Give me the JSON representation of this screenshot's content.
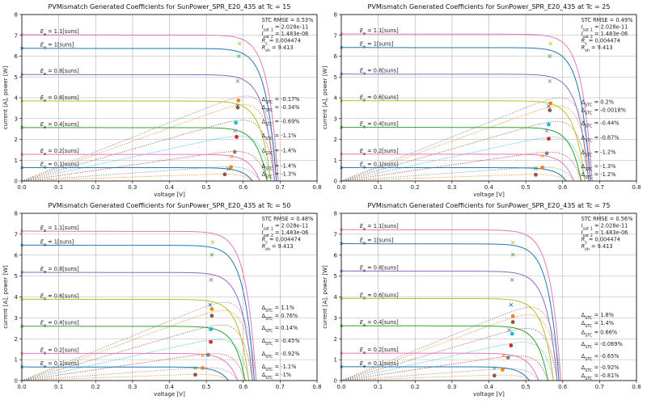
{
  "colors": {
    "iv_lines": [
      "#e377c2",
      "#1f77b4",
      "#9467bd",
      "#bcbd22",
      "#2ca02c",
      "#e377c2",
      "#1f77b4"
    ],
    "power_lines": [
      "#7f7f7f",
      "#ff7f0e",
      "#8c564b",
      "#17becf",
      "#d62728",
      "#7f7f7f",
      "#ff7f0e"
    ],
    "pmp_dots": [
      "#ff7f0e",
      "#8c564b",
      "#17becf",
      "#d62728",
      "#7f7f7f",
      "#ff7f0e",
      "#8c564b"
    ],
    "imp_markers": [
      "#bcbd22",
      "#2ca02c",
      "#9467bd",
      "#1f77b4",
      "#9467bd",
      "#ff7f0e",
      "#2ca02c"
    ],
    "grid": "#b0b0b0"
  },
  "chart_data": [
    {
      "type": "line",
      "title": "PVMismatch Generated Coefficients for SunPower_SPR_E20_435 at Tc = 15",
      "xlabel": "voltage [V]",
      "ylabel": "current [A], power [W]",
      "xlim": [
        0,
        0.8
      ],
      "ylim": [
        0,
        8
      ],
      "grid": true,
      "xticks": [
        "0.0",
        "0.1",
        "0.2",
        "0.3",
        "0.4",
        "0.5",
        "0.6",
        "0.7",
        "0.8"
      ],
      "yticks": [
        "0",
        "1",
        "2",
        "3",
        "4",
        "5",
        "6",
        "7",
        "8"
      ],
      "irradiance_labels": [
        "1.1[suns]",
        "1[suns]",
        "0.8[suns]",
        "0.6[suns]",
        "0.4[suns]",
        "0.2[suns]",
        "0.1[suns]"
      ],
      "isc": [
        7.03,
        6.38,
        5.12,
        3.85,
        2.57,
        1.28,
        0.64
      ],
      "voc": [
        0.695,
        0.69,
        0.685,
        0.675,
        0.665,
        0.645,
        0.625
      ],
      "imp_points": [
        [
          0.59,
          6.6
        ],
        [
          0.588,
          6.0
        ],
        [
          0.585,
          4.8
        ],
        [
          0.585,
          3.62
        ],
        [
          0.578,
          2.42
        ],
        [
          0.568,
          1.18
        ],
        [
          0.56,
          0.58
        ]
      ],
      "pmp_points": [
        [
          0.587,
          3.87
        ],
        [
          0.585,
          3.53
        ],
        [
          0.58,
          2.8
        ],
        [
          0.582,
          2.12
        ],
        [
          0.577,
          1.4
        ],
        [
          0.567,
          0.67
        ],
        [
          0.55,
          0.32
        ]
      ],
      "delta_stc": [
        "-0.17%",
        "-0.34%",
        "-0.69%",
        "-1.1%",
        "-1.4%",
        "-1.4%",
        "-1.3%"
      ],
      "stats": {
        "rmse": "STC RMSE = 0.53%",
        "isat1": "2.028e-11",
        "isat2": "1.483e-06",
        "rs": "0.004474",
        "rsh": "9.413"
      }
    },
    {
      "type": "line",
      "title": "PVMismatch Generated Coefficients for SunPower_SPR_E20_435 at Tc = 25",
      "xlabel": "voltage [V]",
      "ylabel": "current [A], power [W]",
      "xlim": [
        0,
        0.8
      ],
      "ylim": [
        0,
        8
      ],
      "grid": true,
      "xticks": [
        "0.0",
        "0.1",
        "0.2",
        "0.3",
        "0.4",
        "0.5",
        "0.6",
        "0.7",
        "0.8"
      ],
      "yticks": [
        "0",
        "1",
        "2",
        "3",
        "4",
        "5",
        "6",
        "7",
        "8"
      ],
      "irradiance_labels": [
        "1.1[suns]",
        "1[suns]",
        "0.8[suns]",
        "0.6[suns]",
        "0.4[suns]",
        "0.2[suns]",
        "0.1[suns]"
      ],
      "isc": [
        7.07,
        6.42,
        5.14,
        3.86,
        2.58,
        1.29,
        0.64
      ],
      "voc": [
        0.68,
        0.675,
        0.67,
        0.66,
        0.65,
        0.63,
        0.61
      ],
      "imp_points": [
        [
          0.567,
          6.6
        ],
        [
          0.565,
          6.0
        ],
        [
          0.565,
          4.8
        ],
        [
          0.562,
          3.6
        ],
        [
          0.557,
          2.42
        ],
        [
          0.545,
          1.2
        ],
        [
          0.527,
          0.6
        ]
      ],
      "pmp_points": [
        [
          0.567,
          3.73
        ],
        [
          0.565,
          3.4
        ],
        [
          0.562,
          2.72
        ],
        [
          0.562,
          2.03
        ],
        [
          0.557,
          1.33
        ],
        [
          0.545,
          0.65
        ],
        [
          0.527,
          0.3
        ]
      ],
      "delta_stc": [
        "0.2%",
        "-0.0018%",
        "-0.44%",
        "-0.87%",
        "-1.2%",
        "-1.3%",
        "-1.2%"
      ],
      "stats": {
        "rmse": "STC RMSE = 0.49%",
        "isat1": "2.028e-11",
        "isat2": "1.483e-06",
        "rs": "0.004474",
        "rsh": "9.413"
      }
    },
    {
      "type": "line",
      "title": "PVMismatch Generated Coefficients for SunPower_SPR_E20_435 at Tc = 50",
      "xlabel": "voltage [V]",
      "ylabel": "current [A], power [W]",
      "xlim": [
        0,
        0.8
      ],
      "ylim": [
        0,
        8
      ],
      "grid": true,
      "xticks": [
        "0.0",
        "0.1",
        "0.2",
        "0.3",
        "0.4",
        "0.5",
        "0.6",
        "0.7",
        "0.8"
      ],
      "yticks": [
        "0",
        "1",
        "2",
        "3",
        "4",
        "5",
        "6",
        "7",
        "8"
      ],
      "irradiance_labels": [
        "1.1[suns]",
        "1[suns]",
        "0.8[suns]",
        "0.6[suns]",
        "0.4[suns]",
        "0.2[suns]",
        "0.1[suns]"
      ],
      "isc": [
        7.15,
        6.48,
        5.18,
        3.89,
        2.6,
        1.3,
        0.65
      ],
      "voc": [
        0.635,
        0.63,
        0.625,
        0.615,
        0.605,
        0.585,
        0.56
      ],
      "imp_points": [
        [
          0.517,
          6.62
        ],
        [
          0.515,
          6.02
        ],
        [
          0.513,
          4.82
        ],
        [
          0.51,
          3.62
        ],
        [
          0.51,
          2.45
        ],
        [
          0.49,
          1.2
        ],
        [
          0.47,
          0.6
        ]
      ],
      "pmp_points": [
        [
          0.515,
          3.42
        ],
        [
          0.515,
          3.1
        ],
        [
          0.513,
          2.46
        ],
        [
          0.512,
          1.85
        ],
        [
          0.505,
          1.23
        ],
        [
          0.49,
          0.6
        ],
        [
          0.47,
          0.28
        ]
      ],
      "delta_stc": [
        "1.1%",
        "0.76%",
        "0.14%",
        "-0.45%",
        "-0.92%",
        "-1.1%",
        "-1%"
      ],
      "stats": {
        "rmse": "STC RMSE = 0.48%",
        "isat1": "2.028e-11",
        "isat2": "1.483e-06",
        "rs": "0.004474",
        "rsh": "9.413"
      }
    },
    {
      "type": "line",
      "title": "PVMismatch Generated Coefficients for SunPower_SPR_E20_435 at Tc = 75",
      "xlabel": "voltage [V]",
      "ylabel": "current [A], power [W]",
      "xlim": [
        0,
        0.8
      ],
      "ylim": [
        0,
        8
      ],
      "grid": true,
      "xticks": [
        "0.0",
        "0.1",
        "0.2",
        "0.3",
        "0.4",
        "0.5",
        "0.6",
        "0.7",
        "0.8"
      ],
      "yticks": [
        "0",
        "1",
        "2",
        "3",
        "4",
        "5",
        "6",
        "7",
        "8"
      ],
      "irradiance_labels": [
        "1.1[suns]",
        "1[suns]",
        "0.8[suns]",
        "0.6[suns]",
        "0.4[suns]",
        "0.2[suns]",
        "0.1[suns]"
      ],
      "isc": [
        7.22,
        6.55,
        5.24,
        3.93,
        2.62,
        1.31,
        0.66
      ],
      "voc": [
        0.595,
        0.59,
        0.585,
        0.575,
        0.56,
        0.535,
        0.51
      ],
      "imp_points": [
        [
          0.465,
          6.6
        ],
        [
          0.465,
          6.02
        ],
        [
          0.463,
          4.82
        ],
        [
          0.46,
          3.62
        ],
        [
          0.455,
          2.42
        ],
        [
          0.44,
          1.2
        ],
        [
          0.415,
          0.6
        ]
      ],
      "pmp_points": [
        [
          0.465,
          3.08
        ],
        [
          0.465,
          2.8
        ],
        [
          0.463,
          2.24
        ],
        [
          0.46,
          1.68
        ],
        [
          0.452,
          1.1
        ],
        [
          0.437,
          0.52
        ],
        [
          0.415,
          0.24
        ]
      ],
      "delta_stc": [
        "1.8%",
        "1.4%",
        "0.66%",
        "-0.069%",
        "-0.65%",
        "-0.92%",
        "-0.81%"
      ],
      "stats": {
        "rmse": "STC RMSE = 0.56%",
        "isat1": "2.028e-11",
        "isat2": "1.483e-06",
        "rs": "0.004474",
        "rsh": "9.413"
      }
    }
  ]
}
